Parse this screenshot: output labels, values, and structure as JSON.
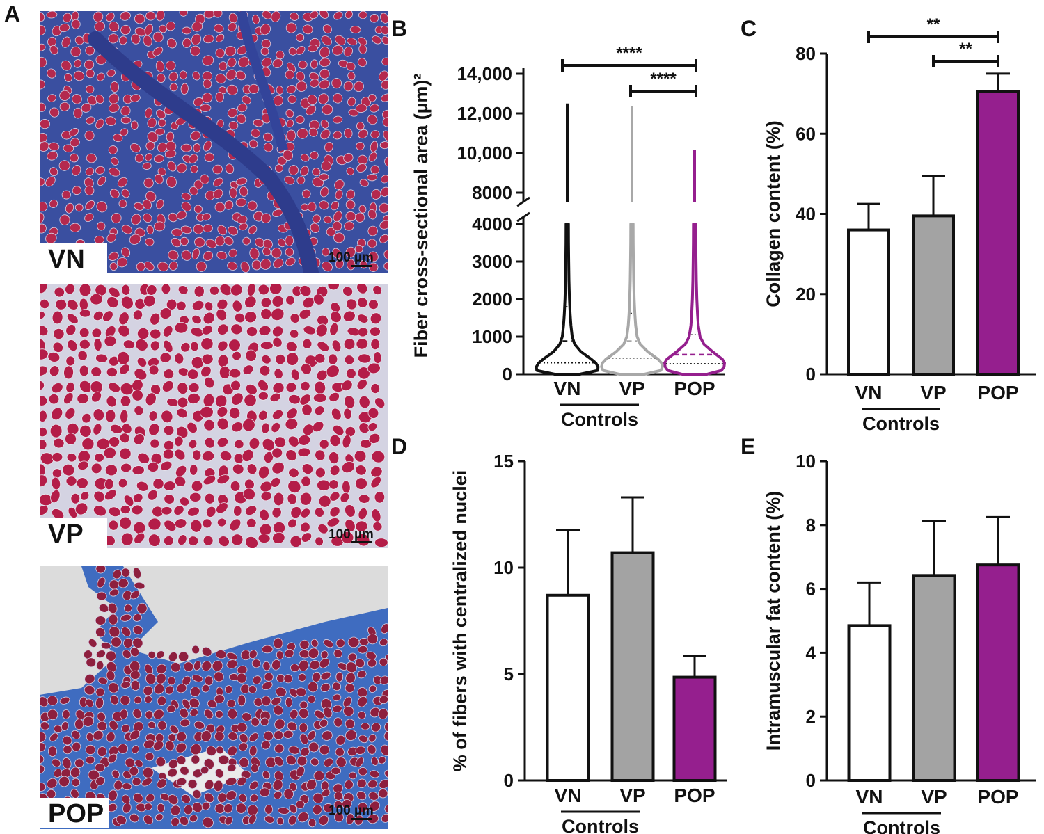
{
  "panels": {
    "A": {
      "letter": "A",
      "images": [
        {
          "group": "VN",
          "scale": "100 µm",
          "stain": "heavy-blue",
          "bg": "#3a4fa0",
          "fiber": "#b4294e"
        },
        {
          "group": "VP",
          "scale": "100 µm",
          "stain": "light",
          "bg": "#d4d3e2",
          "fiber": "#b41d48"
        },
        {
          "group": "POP",
          "scale": "100 µm",
          "stain": "blue-with-gaps",
          "bg": "#3f6cc0",
          "fiber": "#8e1f3e"
        }
      ]
    },
    "B": {
      "letter": "B"
    },
    "C": {
      "letter": "C"
    },
    "D": {
      "letter": "D"
    },
    "E": {
      "letter": "E"
    }
  },
  "colors": {
    "VN": "#ffffff",
    "VP": "#a3a3a3",
    "POP": "#951f8e",
    "violin_VN": "#111111",
    "violin_VP": "#a8a8a8",
    "violin_POP": "#951f8e"
  },
  "chart_data": [
    {
      "id": "B",
      "type": "violin",
      "ylabel": "Fiber cross-sectional area (µm)²",
      "categories": [
        "VN",
        "VP",
        "POP"
      ],
      "group_label": "Controls",
      "y_broken_axis": true,
      "lower_ticks": [
        "0",
        "1000",
        "2000",
        "3000",
        "4000"
      ],
      "upper_ticks": [
        "8000",
        "10,000",
        "12,000",
        "14,000"
      ],
      "series": [
        {
          "category": "VN",
          "max": 12500,
          "median": 880,
          "q1": 300,
          "q3": 1800,
          "peak": 200
        },
        {
          "category": "VP",
          "max": 12350,
          "median": 880,
          "q1": 430,
          "q3": 1620,
          "peak": 250
        },
        {
          "category": "POP",
          "max": 10150,
          "median": 520,
          "q1": 280,
          "q3": 1050,
          "peak": 300
        }
      ],
      "significance": [
        {
          "from": "VN",
          "to": "POP",
          "label": "****"
        },
        {
          "from": "VP",
          "to": "POP",
          "label": "****"
        }
      ]
    },
    {
      "id": "C",
      "type": "bar",
      "ylabel": "Collagen content (%)",
      "categories": [
        "VN",
        "VP",
        "POP"
      ],
      "group_label": "Controls",
      "values": [
        36,
        39.5,
        70.5
      ],
      "errors": [
        6.5,
        10,
        4.5
      ],
      "ylim": [
        0,
        80
      ],
      "yticks": [
        0,
        20,
        40,
        60,
        80
      ],
      "significance": [
        {
          "from": "VN",
          "to": "POP",
          "label": "**"
        },
        {
          "from": "VP",
          "to": "POP",
          "label": "**"
        }
      ]
    },
    {
      "id": "D",
      "type": "bar",
      "ylabel": "% of fibers with centralized nuclei",
      "categories": [
        "VN",
        "VP",
        "POP"
      ],
      "group_label": "Controls",
      "values": [
        8.7,
        10.7,
        4.85
      ],
      "errors": [
        3.05,
        2.6,
        1.0
      ],
      "ylim": [
        0,
        15
      ],
      "yticks": [
        0,
        5,
        10,
        15
      ],
      "significance": []
    },
    {
      "id": "E",
      "type": "bar",
      "ylabel": "Intramuscular fat content (%)",
      "categories": [
        "VN",
        "VP",
        "POP"
      ],
      "group_label": "Controls",
      "values": [
        4.85,
        6.42,
        6.75
      ],
      "errors": [
        1.35,
        1.7,
        1.5
      ],
      "ylim": [
        0,
        10
      ],
      "yticks": [
        0,
        2,
        4,
        6,
        8,
        10
      ],
      "significance": []
    }
  ]
}
